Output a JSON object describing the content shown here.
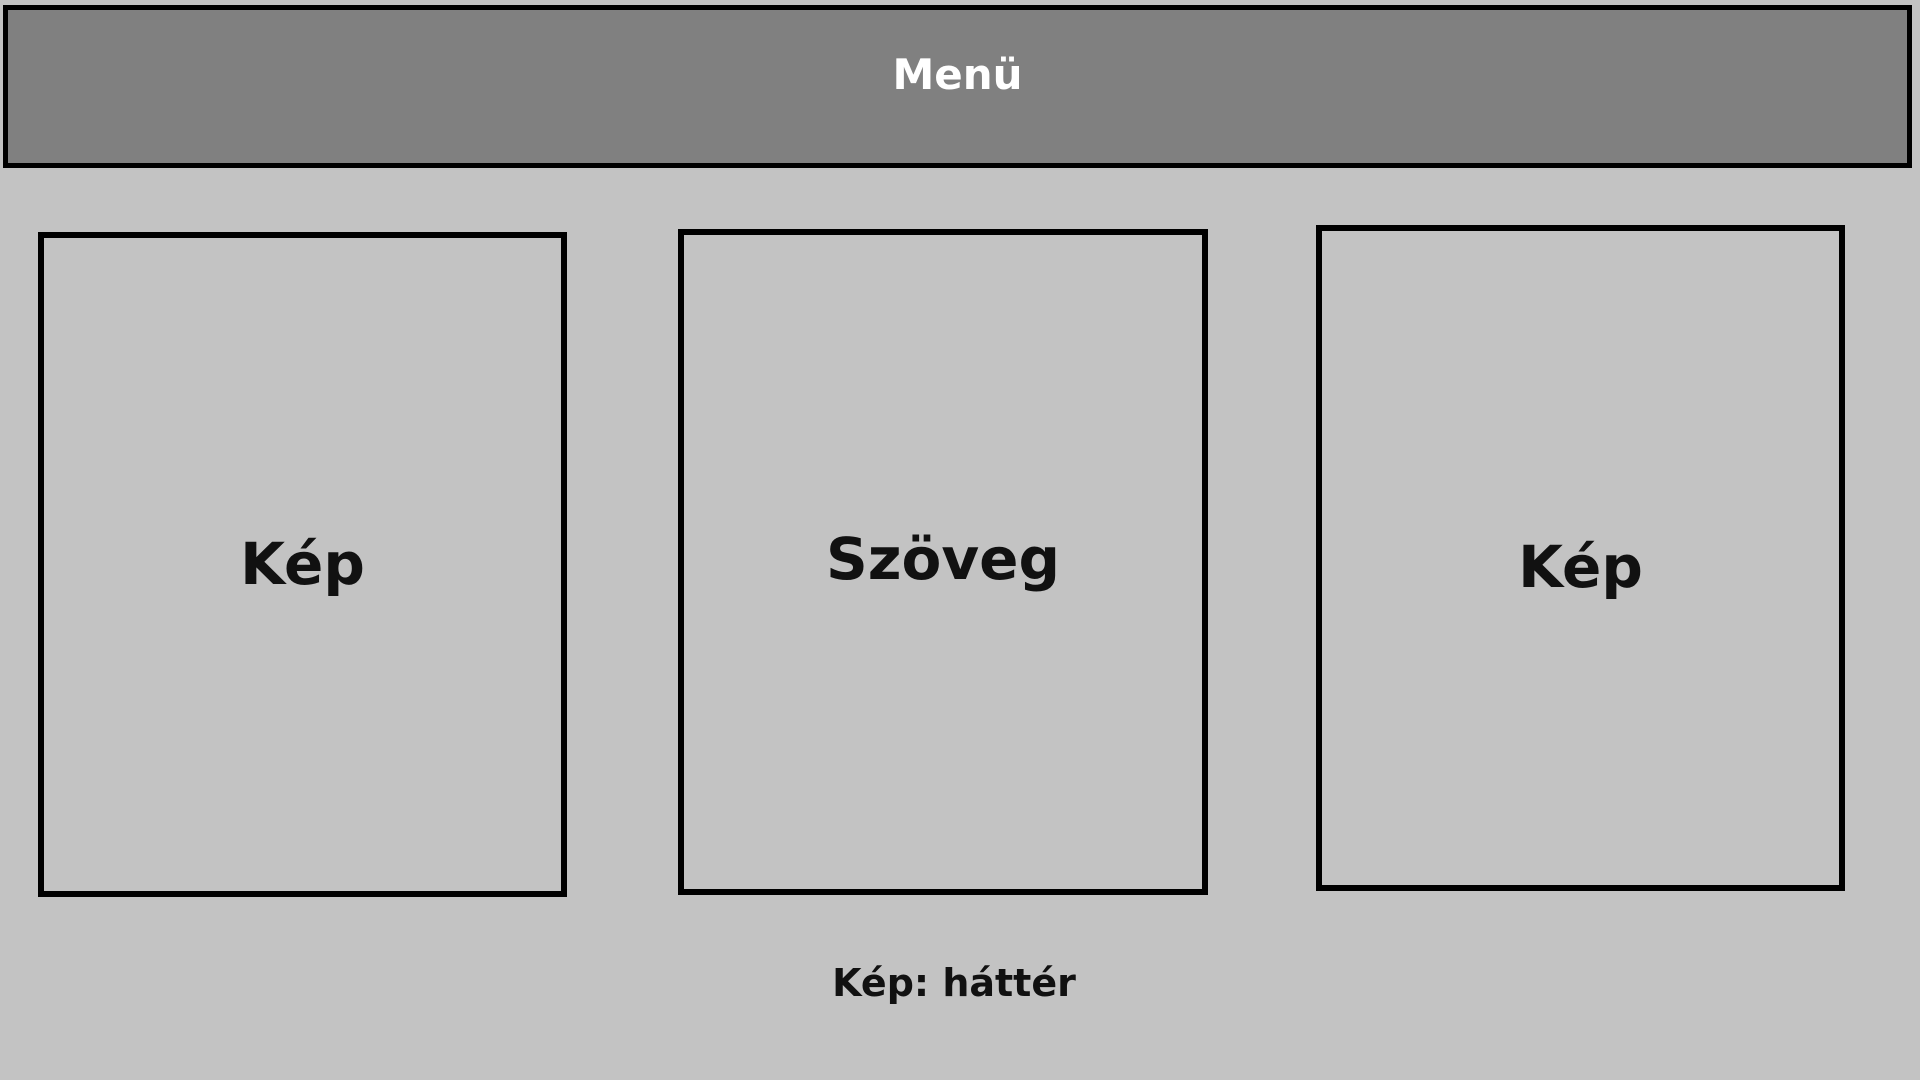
{
  "menu": {
    "title": "Menü",
    "background": "#808080"
  },
  "panels": [
    {
      "label": "Kép"
    },
    {
      "label": "Szöveg"
    },
    {
      "label": "Kép"
    }
  ],
  "caption": "Kép: háttér",
  "colors": {
    "page_background": "#c3c3c3",
    "border": "#000000",
    "menu_text": "#ffffff",
    "label_text": "#111111"
  }
}
